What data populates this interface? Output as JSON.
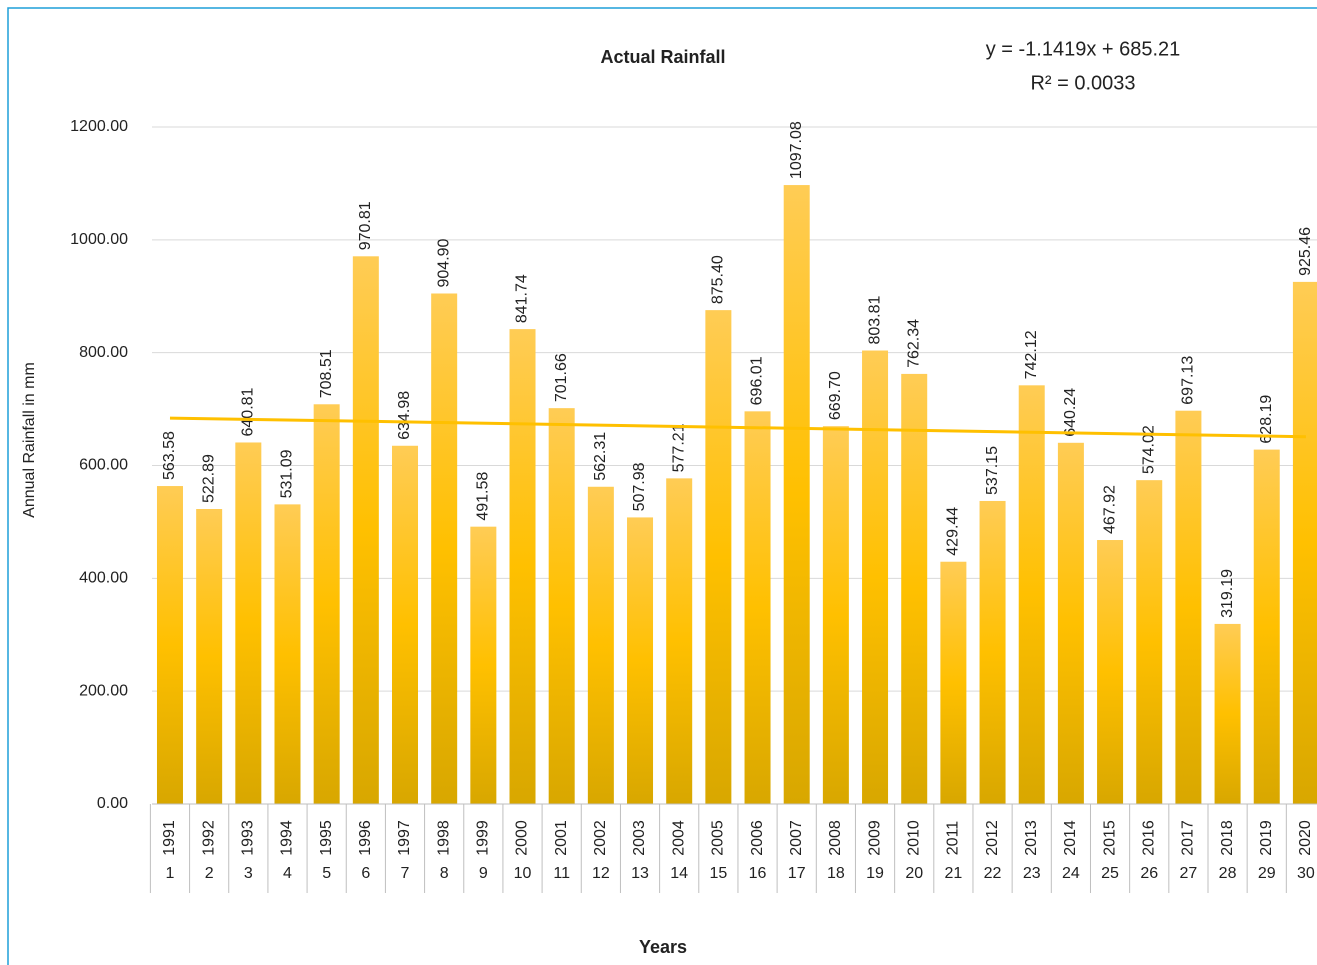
{
  "chart_data": {
    "type": "bar",
    "title": "Actual Rainfall",
    "x_label": "Years",
    "y_label": "Annual Rainfall in mm",
    "categories": [
      "1991",
      "1992",
      "1993",
      "1994",
      "1995",
      "1996",
      "1997",
      "1998",
      "1999",
      "2000",
      "2001",
      "2002",
      "2003",
      "2004",
      "2005",
      "2006",
      "2007",
      "2008",
      "2009",
      "2010",
      "2011",
      "2012",
      "2013",
      "2014",
      "2015",
      "2016",
      "2017",
      "2018",
      "2019",
      "2020"
    ],
    "categories_level2": [
      1,
      2,
      3,
      4,
      5,
      6,
      7,
      8,
      9,
      10,
      11,
      12,
      13,
      14,
      15,
      16,
      17,
      18,
      19,
      20,
      21,
      22,
      23,
      24,
      25,
      26,
      27,
      28,
      29,
      30
    ],
    "values": [
      563.58,
      522.89,
      640.81,
      531.09,
      708.51,
      970.81,
      634.98,
      904.9,
      491.58,
      841.74,
      701.66,
      562.31,
      507.98,
      577.21,
      875.4,
      696.01,
      1097.08,
      669.7,
      803.81,
      762.34,
      429.44,
      537.15,
      742.12,
      640.24,
      467.92,
      574.02,
      697.13,
      319.19,
      628.19,
      925.46
    ],
    "value_labels": [
      "563.58",
      "522.89",
      "640.81",
      "531.09",
      "708.51",
      "970.81",
      "634.98",
      "904.90",
      "491.58",
      "841.74",
      "701.66",
      "562.31",
      "507.98",
      "577.21",
      "875.40",
      "696.01",
      "1097.08",
      "669.70",
      "803.81",
      "762.34",
      "429.44",
      "537.15",
      "742.12",
      "640.24",
      "467.92",
      "574.02",
      "697.13",
      "319.19",
      "628.19",
      "925.46"
    ],
    "color": "#ffc000",
    "ylim": [
      0,
      1200
    ],
    "yticks": [
      {
        "value": 0,
        "label": "0.00"
      },
      {
        "value": 200,
        "label": "200.00"
      },
      {
        "value": 400,
        "label": "400.00"
      },
      {
        "value": 600,
        "label": "600.00"
      },
      {
        "value": 800,
        "label": "800.00"
      },
      {
        "value": 1000,
        "label": "1000.00"
      },
      {
        "value": 1200,
        "label": "1200.00"
      }
    ],
    "grid": true,
    "trendline": {
      "slope": -1.1419,
      "intercept": 685.21,
      "color": "#ffc000",
      "equation": "y = -1.1419x + 685.21",
      "r_squared": "R² = 0.0033"
    }
  }
}
